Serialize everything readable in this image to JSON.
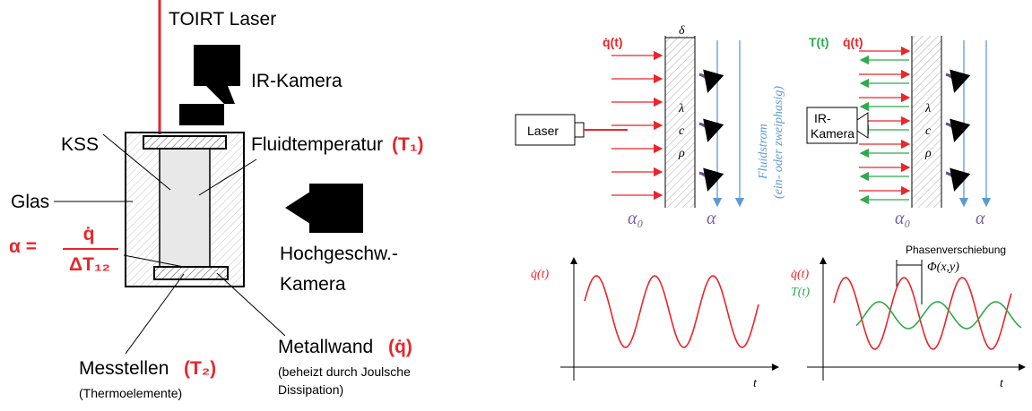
{
  "setup": {
    "laser": "TOIRT Laser",
    "ir_camera": "IR-Kamera",
    "kss": "KSS",
    "fluid_temperature": "Fluidtemperatur",
    "fluid_temperature_symbol": "(T₁)",
    "glass": "Glas",
    "formula": {
      "lhs": "α =",
      "numerator": "q̇",
      "denominator": "ΔT₁₂"
    },
    "hs_camera": [
      "Hochgeschw.-",
      "Kamera"
    ],
    "metal_wall": "Metallwand",
    "metal_wall_symbol": "(q̇)",
    "metal_wall_note": [
      "(beheizt durch Joulsche",
      "Dissipation)"
    ],
    "measurement_points": "Messtellen",
    "measurement_symbol": "(T₂)",
    "measurement_note": "(Thermoelemente)"
  },
  "laser_panel": {
    "heat_flux": "q̇(t)",
    "thickness": "δ",
    "source": "Laser",
    "properties": [
      "λ",
      "c",
      "ρ"
    ],
    "flow": [
      "Fluidstrom",
      "(ein- oder zweiphasig)"
    ],
    "alpha_inner": "α₀",
    "alpha_outer": "α"
  },
  "camera_panel": {
    "temperature": "T(t)",
    "heat_flux": "q̇(t)",
    "camera": [
      "IR-",
      "Kamera"
    ],
    "properties": [
      "λ",
      "c",
      "ρ"
    ],
    "alpha_inner": "α₀",
    "alpha_outer": "α"
  },
  "signal_plot": {
    "y_label": "q̇(t)",
    "x_label": "t"
  },
  "phase_plot": {
    "y_label_flux": "q̇(t)",
    "y_label_temperature": "T(t)",
    "phase_shift": "Phasenverschiebung",
    "phase_symbol": "Φ(x,y)",
    "x_label": "t"
  }
}
